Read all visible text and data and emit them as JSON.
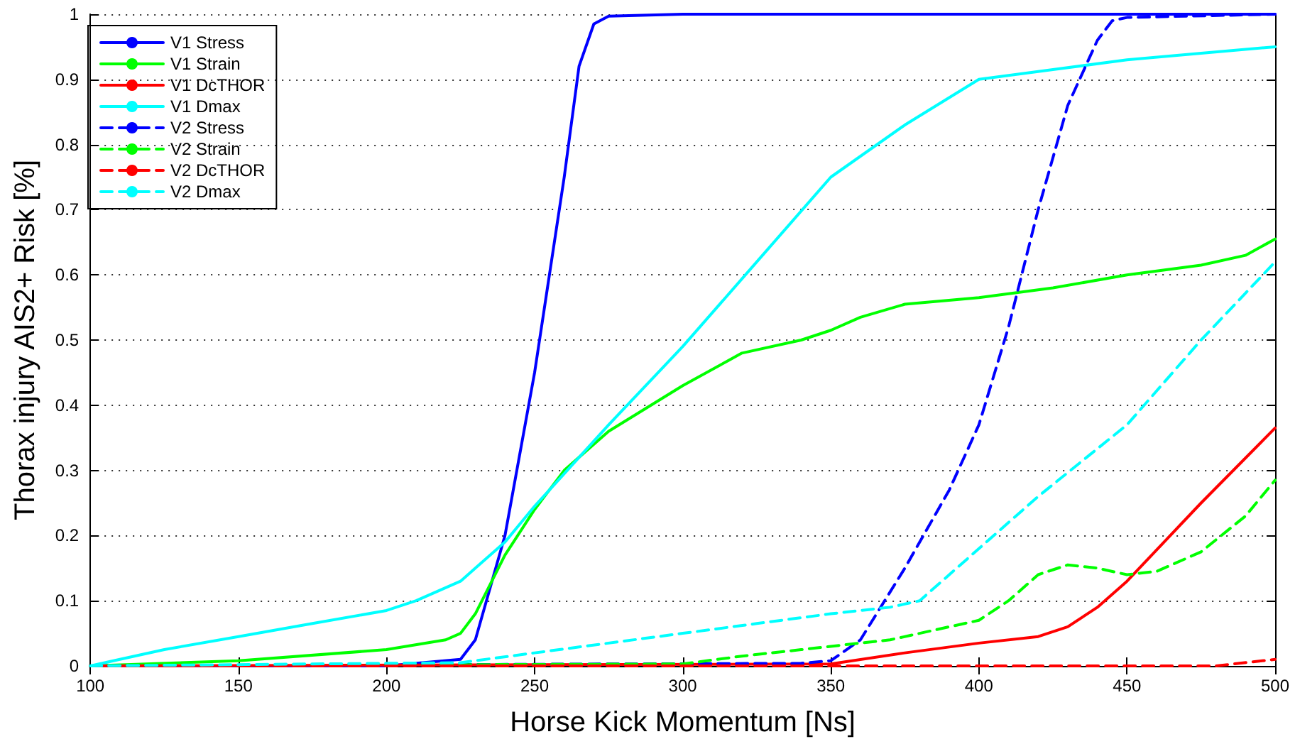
{
  "chart_data": {
    "type": "line",
    "xlabel": "Horse Kick Momentum [Ns]",
    "ylabel": "Thorax injury AIS2+ Risk [%]",
    "xlim": [
      100,
      500
    ],
    "xticks": [
      100,
      150,
      200,
      250,
      300,
      350,
      400,
      450,
      500
    ],
    "ylim": [
      0,
      1
    ],
    "yticks": [
      0,
      0.1,
      0.2,
      0.3,
      0.4,
      0.5,
      0.6,
      0.7,
      0.8,
      0.9,
      1
    ],
    "grid": "y",
    "legend": "top left",
    "marker": "none",
    "series": [
      {
        "name": "V1 Stress",
        "color": "#0000ff",
        "line_style": "solid",
        "x": [
          100,
          200,
          225,
          230,
          240,
          250,
          260,
          265,
          270,
          275,
          300,
          400,
          500
        ],
        "values": [
          0,
          0,
          0.01,
          0.04,
          0.2,
          0.45,
          0.75,
          0.92,
          0.985,
          0.997,
          1,
          1,
          1
        ]
      },
      {
        "name": "V1 Strain",
        "color": "#00ff00",
        "line_style": "solid",
        "x": [
          100,
          150,
          200,
          220,
          225,
          230,
          240,
          250,
          260,
          275,
          300,
          320,
          340,
          350,
          360,
          375,
          400,
          425,
          450,
          475,
          490,
          500
        ],
        "values": [
          0,
          0.008,
          0.025,
          0.04,
          0.05,
          0.08,
          0.17,
          0.24,
          0.3,
          0.36,
          0.43,
          0.48,
          0.5,
          0.515,
          0.535,
          0.555,
          0.565,
          0.58,
          0.6,
          0.615,
          0.63,
          0.655
        ]
      },
      {
        "name": "V1 DcTHOR",
        "color": "#ff0000",
        "line_style": "solid",
        "x": [
          100,
          350,
          375,
          400,
          420,
          430,
          440,
          450,
          475,
          500
        ],
        "values": [
          0,
          0.003,
          0.02,
          0.035,
          0.045,
          0.06,
          0.09,
          0.13,
          0.25,
          0.365
        ]
      },
      {
        "name": "V1 Dmax",
        "color": "#00ffff",
        "line_style": "solid",
        "x": [
          100,
          110,
          125,
          150,
          175,
          200,
          210,
          225,
          230,
          240,
          250,
          275,
          300,
          325,
          350,
          375,
          400,
          425,
          450,
          475,
          500
        ],
        "values": [
          0,
          0.01,
          0.025,
          0.045,
          0.065,
          0.085,
          0.1,
          0.13,
          0.15,
          0.19,
          0.245,
          0.37,
          0.49,
          0.62,
          0.75,
          0.83,
          0.9,
          0.915,
          0.93,
          0.94,
          0.95
        ]
      },
      {
        "name": "V2 Stress",
        "color": "#0000ff",
        "line_style": "dashed",
        "x": [
          100,
          340,
          350,
          360,
          375,
          390,
          400,
          410,
          420,
          430,
          440,
          445,
          450,
          500
        ],
        "values": [
          0,
          0.004,
          0.008,
          0.04,
          0.15,
          0.27,
          0.37,
          0.52,
          0.7,
          0.86,
          0.96,
          0.99,
          0.995,
          1
        ]
      },
      {
        "name": "V2 Strain",
        "color": "#00ff00",
        "line_style": "dashed",
        "x": [
          100,
          300,
          320,
          340,
          350,
          370,
          390,
          400,
          410,
          420,
          430,
          440,
          450,
          460,
          475,
          490,
          500
        ],
        "values": [
          0,
          0.003,
          0.015,
          0.025,
          0.03,
          0.04,
          0.06,
          0.07,
          0.1,
          0.14,
          0.155,
          0.15,
          0.14,
          0.145,
          0.175,
          0.23,
          0.285
        ]
      },
      {
        "name": "V2 DcTHOR",
        "color": "#ff0000",
        "line_style": "dashed",
        "x": [
          100,
          480,
          500
        ],
        "values": [
          0,
          0,
          0.01
        ]
      },
      {
        "name": "V2 Dmax",
        "color": "#00ffff",
        "line_style": "dashed",
        "x": [
          100,
          225,
          250,
          300,
          325,
          350,
          370,
          380,
          400,
          420,
          450,
          475,
          500
        ],
        "values": [
          0,
          0.005,
          0.02,
          0.05,
          0.065,
          0.08,
          0.09,
          0.1,
          0.18,
          0.26,
          0.37,
          0.5,
          0.62
        ]
      }
    ]
  }
}
